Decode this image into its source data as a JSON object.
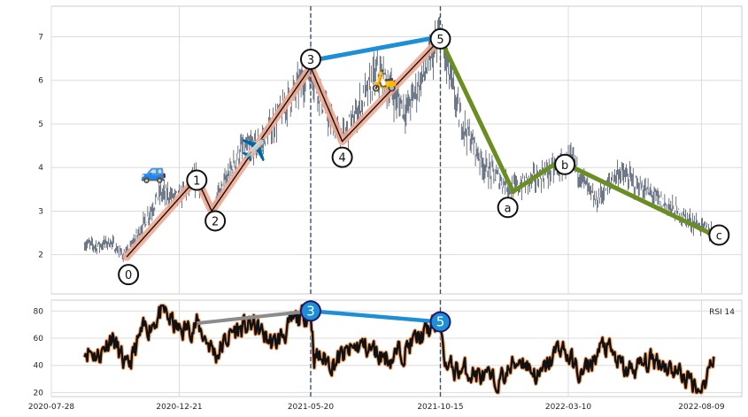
{
  "chart_data": [
    {
      "type": "line",
      "panel": "price",
      "series_kind": "ohlc-bars",
      "ylim": [
        1.1,
        7.7
      ],
      "yticks": [
        2,
        3,
        4,
        5,
        6,
        7
      ],
      "ytick_labels": [
        "2",
        "3",
        "4",
        "5",
        "6",
        "7"
      ],
      "grid": true,
      "price_anchors": [
        {
          "x": "2020-09-04",
          "y": 2.25
        },
        {
          "x": "2020-09-18",
          "y": 2.2
        },
        {
          "x": "2020-10-03",
          "y": 2.3
        },
        {
          "x": "2020-10-14",
          "y": 2.05
        },
        {
          "x": "2020-10-22",
          "y": 2.0
        },
        {
          "x": "2020-11-10",
          "y": 2.7
        },
        {
          "x": "2020-11-29",
          "y": 3.4
        },
        {
          "x": "2020-12-21",
          "y": 3.3
        },
        {
          "x": "2021-01-10",
          "y": 3.75
        },
        {
          "x": "2021-01-27",
          "y": 3.0
        },
        {
          "x": "2021-03-01",
          "y": 4.4
        },
        {
          "x": "2021-03-22",
          "y": 4.5
        },
        {
          "x": "2021-05-20",
          "y": 6.3
        },
        {
          "x": "2021-06-06",
          "y": 5.3
        },
        {
          "x": "2021-06-25",
          "y": 4.6
        },
        {
          "x": "2021-08-04",
          "y": 6.2
        },
        {
          "x": "2021-09-06",
          "y": 5.3
        },
        {
          "x": "2021-10-15",
          "y": 6.95
        },
        {
          "x": "2021-11-05",
          "y": 5.2
        },
        {
          "x": "2021-12-05",
          "y": 4.0
        },
        {
          "x": "2022-01-06",
          "y": 3.5
        },
        {
          "x": "2022-02-15",
          "y": 3.9
        },
        {
          "x": "2022-03-16",
          "y": 4.15
        },
        {
          "x": "2022-04-10",
          "y": 3.2
        },
        {
          "x": "2022-05-06",
          "y": 3.9
        },
        {
          "x": "2022-06-15",
          "y": 3.35
        },
        {
          "x": "2022-07-25",
          "y": 2.8
        },
        {
          "x": "2022-08-23",
          "y": 2.5
        }
      ],
      "impulse_wave": [
        {
          "label": "0",
          "x": "2020-10-22",
          "y": 1.95
        },
        {
          "label": "1",
          "x": "2021-01-10",
          "y": 3.75
        },
        {
          "label": "2",
          "x": "2021-01-27",
          "y": 3.0
        },
        {
          "label": "3",
          "x": "2021-05-20",
          "y": 6.3
        },
        {
          "label": "4",
          "x": "2021-06-25",
          "y": 4.6
        },
        {
          "label": "5",
          "x": "2021-10-15",
          "y": 6.95
        }
      ],
      "corrective_wave": [
        {
          "label": "5",
          "x": "2021-10-15",
          "y": 6.95
        },
        {
          "label": "a",
          "x": "2022-01-06",
          "y": 3.45
        },
        {
          "label": "b",
          "x": "2022-02-28",
          "y": 4.15
        },
        {
          "label": "c",
          "x": "2022-08-23",
          "y": 2.45
        }
      ],
      "divergence_line": {
        "from": {
          "x": "2021-05-20",
          "y": 6.45
        },
        "to": {
          "x": "2021-10-15",
          "y": 7.0
        }
      },
      "vertical_markers": [
        "2021-05-20",
        "2021-10-15"
      ],
      "emoji_markers": [
        {
          "glyph": "🚙",
          "x": "2020-11-22",
          "y": 3.9
        },
        {
          "glyph": "✈️",
          "x": "2021-03-16",
          "y": 4.4
        },
        {
          "glyph": "🛵",
          "x": "2021-08-12",
          "y": 6.0
        }
      ]
    },
    {
      "type": "line",
      "panel": "rsi",
      "legend": "RSI 14",
      "legend_position": "top-right",
      "ylim": [
        17,
        88
      ],
      "yticks": [
        20,
        40,
        60,
        80
      ],
      "ytick_labels": [
        "20",
        "40",
        "60",
        "80"
      ],
      "grid": true,
      "rsi_anchors": [
        {
          "x": "2020-09-04",
          "y": 53
        },
        {
          "x": "2020-09-20",
          "y": 47
        },
        {
          "x": "2020-10-05",
          "y": 62
        },
        {
          "x": "2020-10-22",
          "y": 36
        },
        {
          "x": "2020-11-08",
          "y": 63
        },
        {
          "x": "2020-12-02",
          "y": 80
        },
        {
          "x": "2020-12-21",
          "y": 65
        },
        {
          "x": "2021-01-10",
          "y": 70
        },
        {
          "x": "2021-02-01",
          "y": 48
        },
        {
          "x": "2021-02-20",
          "y": 65
        },
        {
          "x": "2021-03-15",
          "y": 70
        },
        {
          "x": "2021-04-08",
          "y": 55
        },
        {
          "x": "2021-05-01",
          "y": 72
        },
        {
          "x": "2021-05-20",
          "y": 80
        },
        {
          "x": "2021-05-24",
          "y": 47
        },
        {
          "x": "2021-06-15",
          "y": 42
        },
        {
          "x": "2021-07-15",
          "y": 55
        },
        {
          "x": "2021-08-20",
          "y": 45
        },
        {
          "x": "2021-09-20",
          "y": 60
        },
        {
          "x": "2021-10-15",
          "y": 72
        },
        {
          "x": "2021-10-22",
          "y": 38
        },
        {
          "x": "2021-11-20",
          "y": 35
        },
        {
          "x": "2021-12-18",
          "y": 26
        },
        {
          "x": "2022-01-15",
          "y": 46
        },
        {
          "x": "2022-02-05",
          "y": 30
        },
        {
          "x": "2022-03-01",
          "y": 55
        },
        {
          "x": "2022-03-25",
          "y": 32
        },
        {
          "x": "2022-04-20",
          "y": 55
        },
        {
          "x": "2022-05-15",
          "y": 35
        },
        {
          "x": "2022-06-20",
          "y": 45
        },
        {
          "x": "2022-07-20",
          "y": 32
        },
        {
          "x": "2022-08-10",
          "y": 22
        },
        {
          "x": "2022-08-23",
          "y": 50
        }
      ],
      "divergence_line": {
        "from": {
          "x": "2021-05-20",
          "y": 80,
          "label": "3"
        },
        "to": {
          "x": "2021-10-15",
          "y": 72,
          "label": "5"
        }
      },
      "grey_trend_line": {
        "from": {
          "x": "2021-01-10",
          "y": 71
        },
        "to": {
          "x": "2021-05-20",
          "y": 80
        }
      }
    }
  ],
  "x_axis": {
    "xlim": [
      "2020-07-28",
      "2022-09-24"
    ],
    "tick_dates": [
      "2020-07-28",
      "2020-12-21",
      "2021-05-20",
      "2021-10-15",
      "2022-03-10",
      "2022-08-09"
    ],
    "tick_labels": [
      "2020-07-28",
      "2020-12-21",
      "2021-05-20",
      "2021-10-15",
      "2022-03-10",
      "2022-08-09"
    ]
  },
  "colors": {
    "bars": "#2f3e55",
    "impulse_highlight": "#f0a991",
    "impulse_line": "#111111",
    "corrective": "#6b8e23",
    "divergence": "#1e8fd6",
    "marker_vline": "#36536b",
    "rsi_line": "#111111",
    "rsi_glow": "#f2a36b",
    "rsi_grey": "#8c8c8c",
    "rsi_badge_fill": "#1e8fd6",
    "rsi_badge_stroke": "#1a1a6e",
    "grid": "#dcdcdc",
    "axes_edge": "#cccccc"
  }
}
